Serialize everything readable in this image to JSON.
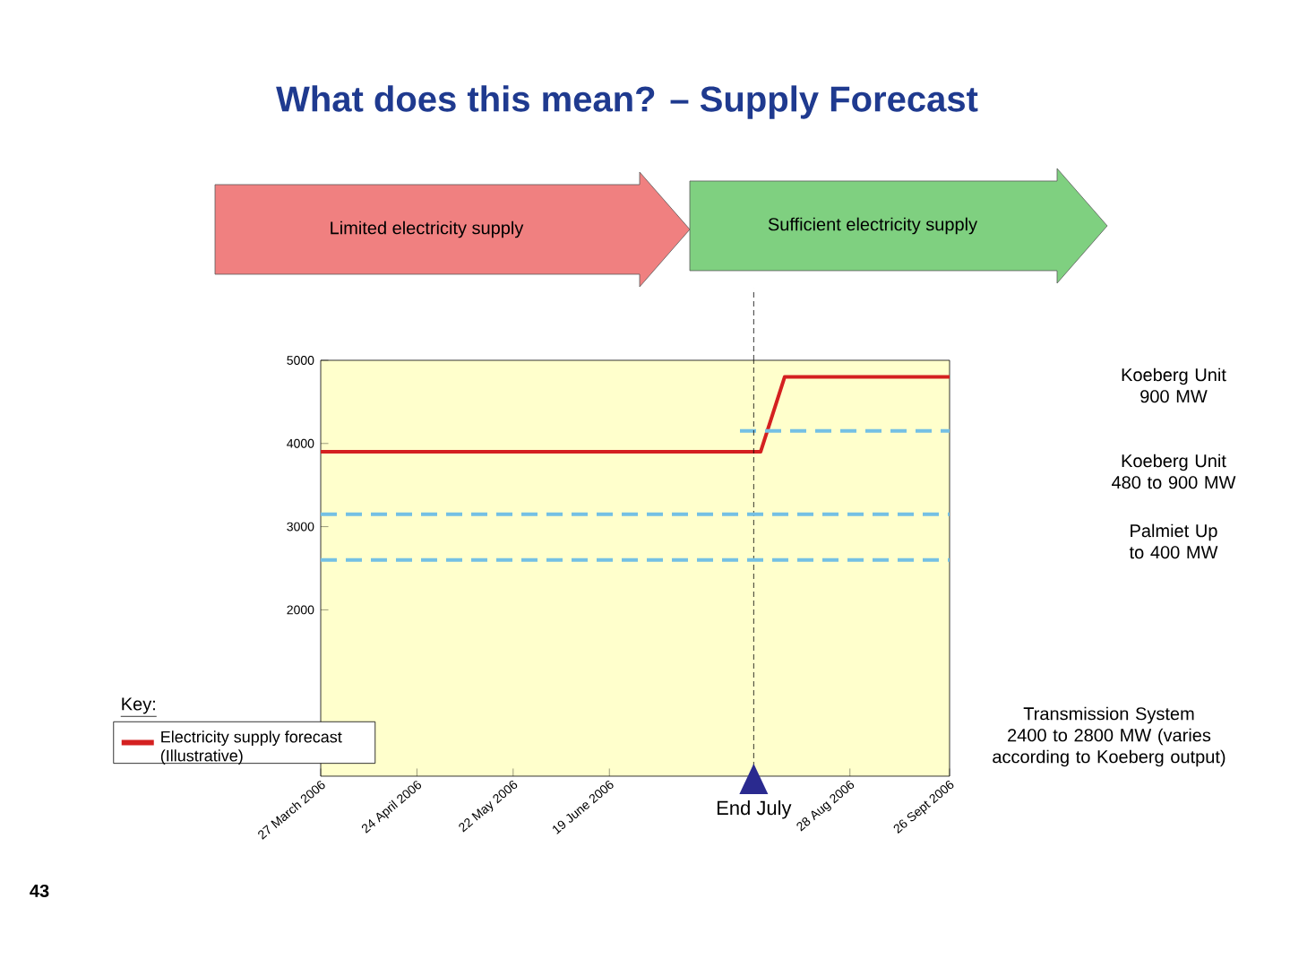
{
  "chart_data": {
    "type": "line",
    "title": "What does this mean? – Supply Forecast",
    "ylim": [
      0,
      5000
    ],
    "yticks": [
      2000,
      3000,
      4000,
      5000
    ],
    "xlim": [
      "2006-03-27",
      "2006-09-26"
    ],
    "xticks": [
      {
        "value": "2006-03-27",
        "label": "27 March 2006"
      },
      {
        "value": "2006-04-24",
        "label": "24 April 2006"
      },
      {
        "value": "2006-05-22",
        "label": "22 May 2006"
      },
      {
        "value": "2006-06-19",
        "label": "19 June 2006"
      },
      {
        "value": "2006-08-28",
        "label": "28 Aug 2006"
      },
      {
        "value": "2006-09-26",
        "label": "26 Sept 2006"
      }
    ],
    "series": [
      {
        "name": "Electricity supply forecast (Illustrative)",
        "color": "#d42020",
        "x": [
          "2006-03-27",
          "2006-08-02",
          "2006-08-09",
          "2006-09-26"
        ],
        "values": [
          3900,
          3900,
          4800,
          4800
        ]
      },
      {
        "color": "#74c0e4",
        "line_style": "dashed",
        "x": [
          "2006-07-27",
          "2006-09-26"
        ],
        "values": [
          4150,
          4150
        ]
      }
    ],
    "ref_lines": [
      {
        "axis": "x",
        "value": "2006-07-31",
        "label": "End July",
        "color": "#000000",
        "line_style": "dashed"
      },
      {
        "axis": "y",
        "value": 3150,
        "color": "#74c0e4",
        "line_style": "dashed"
      },
      {
        "axis": "y",
        "value": 2600,
        "color": "#74c0e4",
        "line_style": "dashed"
      }
    ],
    "legend": "bottom left",
    "legend_title": "Key:",
    "annotations": [
      "Limited electricity supply",
      "Sufficient electricity supply",
      "Koeberg Unit 900 MW",
      "Koeberg Unit 480 to 900 MW",
      "Palmiet Up to 400 MW",
      "Transmission System 2400 to 2800 MW (varies according to Koeberg output)",
      "43"
    ]
  }
}
